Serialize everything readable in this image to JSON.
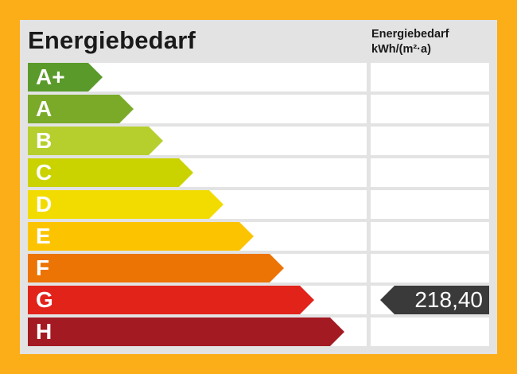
{
  "header": {
    "title": "Energiebedarf",
    "column_title": "Energiebedarf",
    "column_unit": "kWh/(m²·a)"
  },
  "classes": [
    {
      "label": "A+",
      "color": "#5a9a2a"
    },
    {
      "label": "A",
      "color": "#7aaa28"
    },
    {
      "label": "B",
      "color": "#b6cf2d"
    },
    {
      "label": "C",
      "color": "#cad300"
    },
    {
      "label": "D",
      "color": "#f2dc00"
    },
    {
      "label": "E",
      "color": "#fcc400"
    },
    {
      "label": "F",
      "color": "#ec7404"
    },
    {
      "label": "G",
      "color": "#e2231a"
    },
    {
      "label": "H",
      "color": "#a31a22"
    }
  ],
  "value": {
    "text": "218,40",
    "class": "G",
    "color": "#3a3a3a"
  }
}
